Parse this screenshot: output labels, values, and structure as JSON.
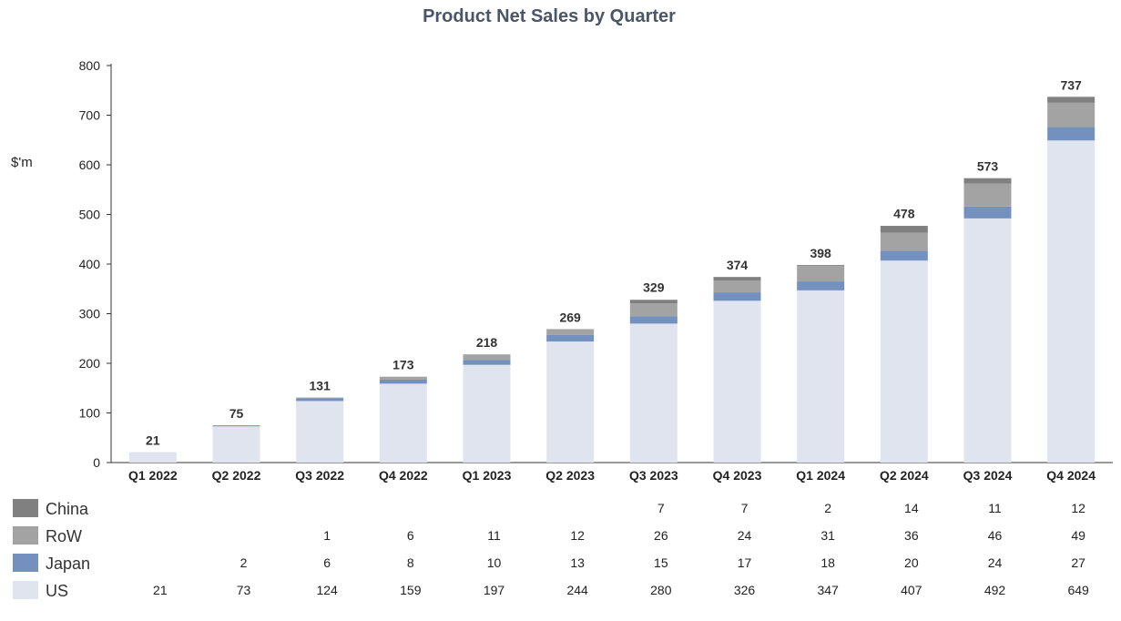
{
  "chart_data": {
    "type": "bar",
    "stacked": true,
    "title": "Product Net Sales by Quarter",
    "ylabel": "$'m",
    "xlabel": "",
    "ylim": [
      0,
      800
    ],
    "yticks": [
      0,
      100,
      200,
      300,
      400,
      500,
      600,
      700,
      800
    ],
    "categories": [
      "Q1 2022",
      "Q2 2022",
      "Q3 2022",
      "Q4 2022",
      "Q1 2023",
      "Q2 2023",
      "Q3 2023",
      "Q4 2023",
      "Q1 2024",
      "Q2 2024",
      "Q3 2024",
      "Q4 2024"
    ],
    "totals": [
      21,
      75,
      131,
      173,
      218,
      269,
      329,
      374,
      398,
      478,
      573,
      737
    ],
    "series": [
      {
        "name": "US",
        "color": "#dfe4ee",
        "values": [
          21,
          73,
          124,
          159,
          197,
          244,
          280,
          326,
          347,
          407,
          492,
          649
        ]
      },
      {
        "name": "Japan",
        "color": "#7390bf",
        "values": [
          null,
          2,
          6,
          8,
          10,
          13,
          15,
          17,
          18,
          20,
          24,
          27
        ]
      },
      {
        "name": "RoW",
        "color": "#a3a3a3",
        "values": [
          null,
          null,
          1,
          6,
          11,
          12,
          26,
          24,
          31,
          36,
          46,
          49
        ]
      },
      {
        "name": "China",
        "color": "#808080",
        "values": [
          null,
          null,
          null,
          null,
          null,
          null,
          7,
          7,
          2,
          14,
          11,
          12
        ]
      }
    ],
    "grid": false,
    "legend": "bottom-left"
  }
}
